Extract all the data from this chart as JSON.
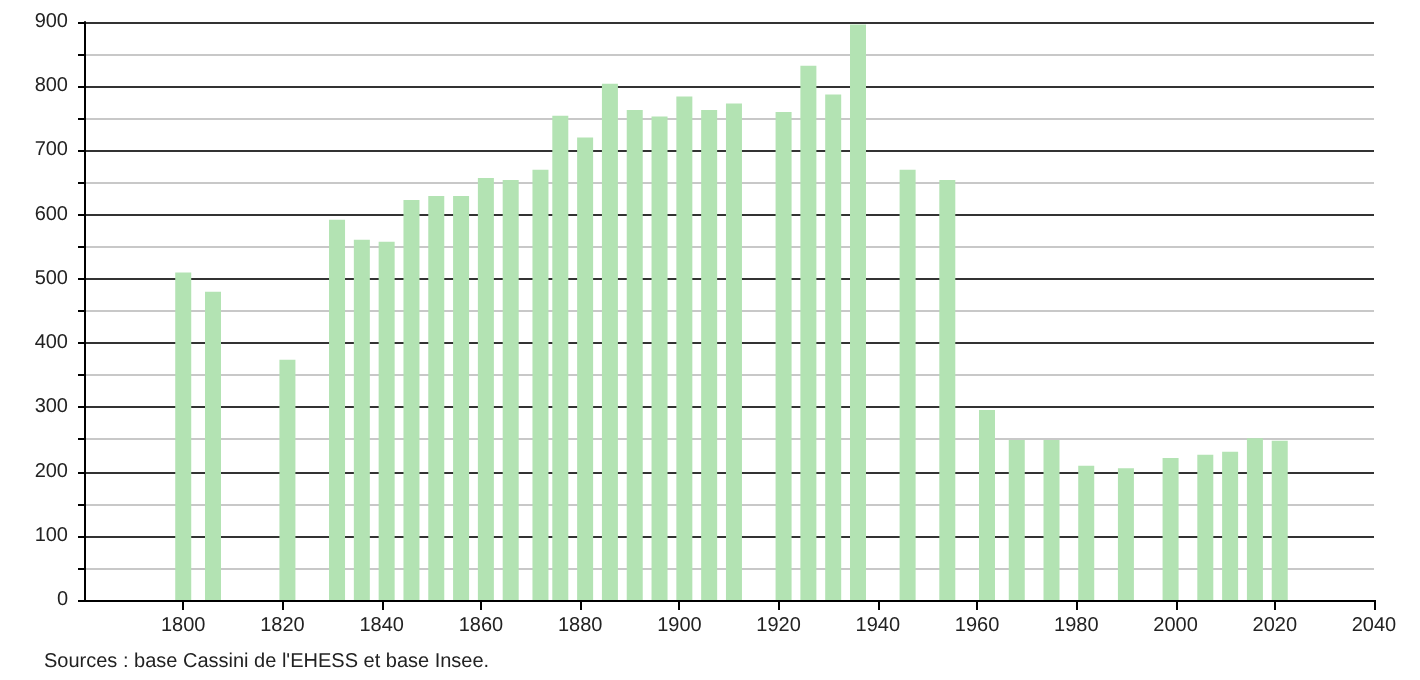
{
  "chart_data": {
    "type": "bar",
    "color": "#b3e3b3",
    "x": [
      1800,
      1806,
      1821,
      1831,
      1836,
      1841,
      1846,
      1851,
      1856,
      1861,
      1866,
      1872,
      1876,
      1881,
      1886,
      1891,
      1896,
      1901,
      1906,
      1911,
      1921,
      1926,
      1931,
      1936,
      1946,
      1954,
      1962,
      1968,
      1975,
      1982,
      1990,
      1999,
      2006,
      2011,
      2016,
      2021
    ],
    "values": [
      510,
      480,
      374,
      592,
      561,
      558,
      623,
      629,
      629,
      657,
      654,
      670,
      754,
      720,
      804,
      763,
      753,
      784,
      763,
      773,
      760,
      832,
      787,
      896,
      670,
      654,
      296,
      249,
      249,
      209,
      205,
      221,
      226,
      231,
      252,
      248
    ],
    "xlim": [
      1780,
      2040
    ],
    "xticks": [
      1800,
      1820,
      1840,
      1860,
      1880,
      1900,
      1920,
      1940,
      1960,
      1980,
      2000,
      2020,
      2040
    ],
    "ylim": [
      0,
      900
    ],
    "yticks": [
      0,
      {
        "value": 50,
        "label": null
      },
      100,
      {
        "value": 150,
        "label": null
      },
      200,
      {
        "value": 250,
        "label": null
      },
      300,
      {
        "value": 350,
        "label": null
      },
      400,
      {
        "value": 450,
        "label": null
      },
      500,
      {
        "value": 550,
        "label": null
      },
      600,
      {
        "value": 650,
        "label": null
      },
      700,
      {
        "value": 750,
        "label": null
      },
      800,
      {
        "value": 850,
        "label": null
      },
      900
    ],
    "grid": true,
    "annotations": [
      "Sources : base Cassini de l'EHESS et base Insee."
    ]
  }
}
